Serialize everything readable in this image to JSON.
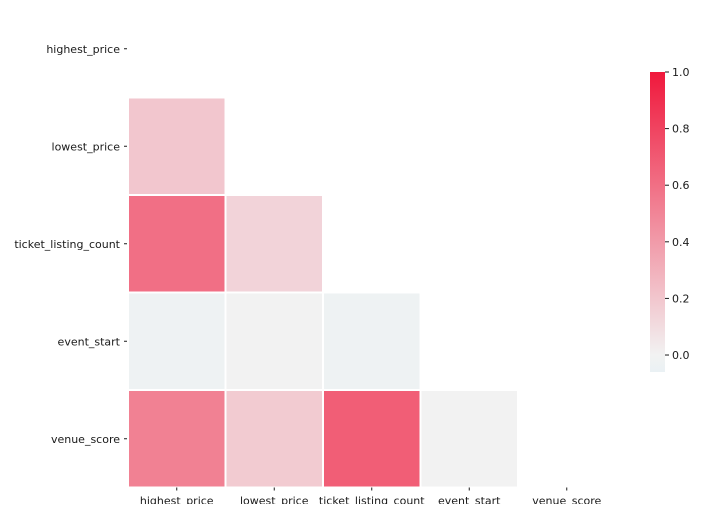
{
  "chart_data": {
    "type": "heatmap",
    "title": "",
    "xlabel": "",
    "ylabel": "",
    "rows": [
      "highest_price",
      "lowest_price",
      "ticket_listing_count",
      "event_start",
      "venue_score"
    ],
    "columns": [
      "highest_price",
      "lowest_price",
      "ticket_listing_count",
      "event_start",
      "venue_score"
    ],
    "mask": "upper triangle including diagonal",
    "cells": [
      {
        "row": "lowest_price",
        "col": "highest_price",
        "value": 0.2
      },
      {
        "row": "ticket_listing_count",
        "col": "highest_price",
        "value": 0.6
      },
      {
        "row": "ticket_listing_count",
        "col": "lowest_price",
        "value": 0.14
      },
      {
        "row": "event_start",
        "col": "highest_price",
        "value": -0.03
      },
      {
        "row": "event_start",
        "col": "lowest_price",
        "value": 0.0
      },
      {
        "row": "event_start",
        "col": "ticket_listing_count",
        "value": -0.03
      },
      {
        "row": "venue_score",
        "col": "highest_price",
        "value": 0.52
      },
      {
        "row": "venue_score",
        "col": "lowest_price",
        "value": 0.18
      },
      {
        "row": "venue_score",
        "col": "ticket_listing_count",
        "value": 0.68
      },
      {
        "row": "venue_score",
        "col": "event_start",
        "value": 0.0
      }
    ],
    "colorbar": {
      "min": -0.06,
      "max": 1.0,
      "ticks": [
        {
          "value": 0.0,
          "label": "0.0"
        },
        {
          "value": 0.2,
          "label": "0.2"
        },
        {
          "value": 0.4,
          "label": "0.4"
        },
        {
          "value": 0.6,
          "label": "0.6"
        },
        {
          "value": 0.8,
          "label": "0.8"
        },
        {
          "value": 1.0,
          "label": "1.0"
        }
      ]
    },
    "colors": {
      "low": "#eaf1f4",
      "mid": "#f2f2f2",
      "high": "#f0183c",
      "cell_border": "#ffffff",
      "text": "#1a1a1a"
    },
    "grid": false
  }
}
